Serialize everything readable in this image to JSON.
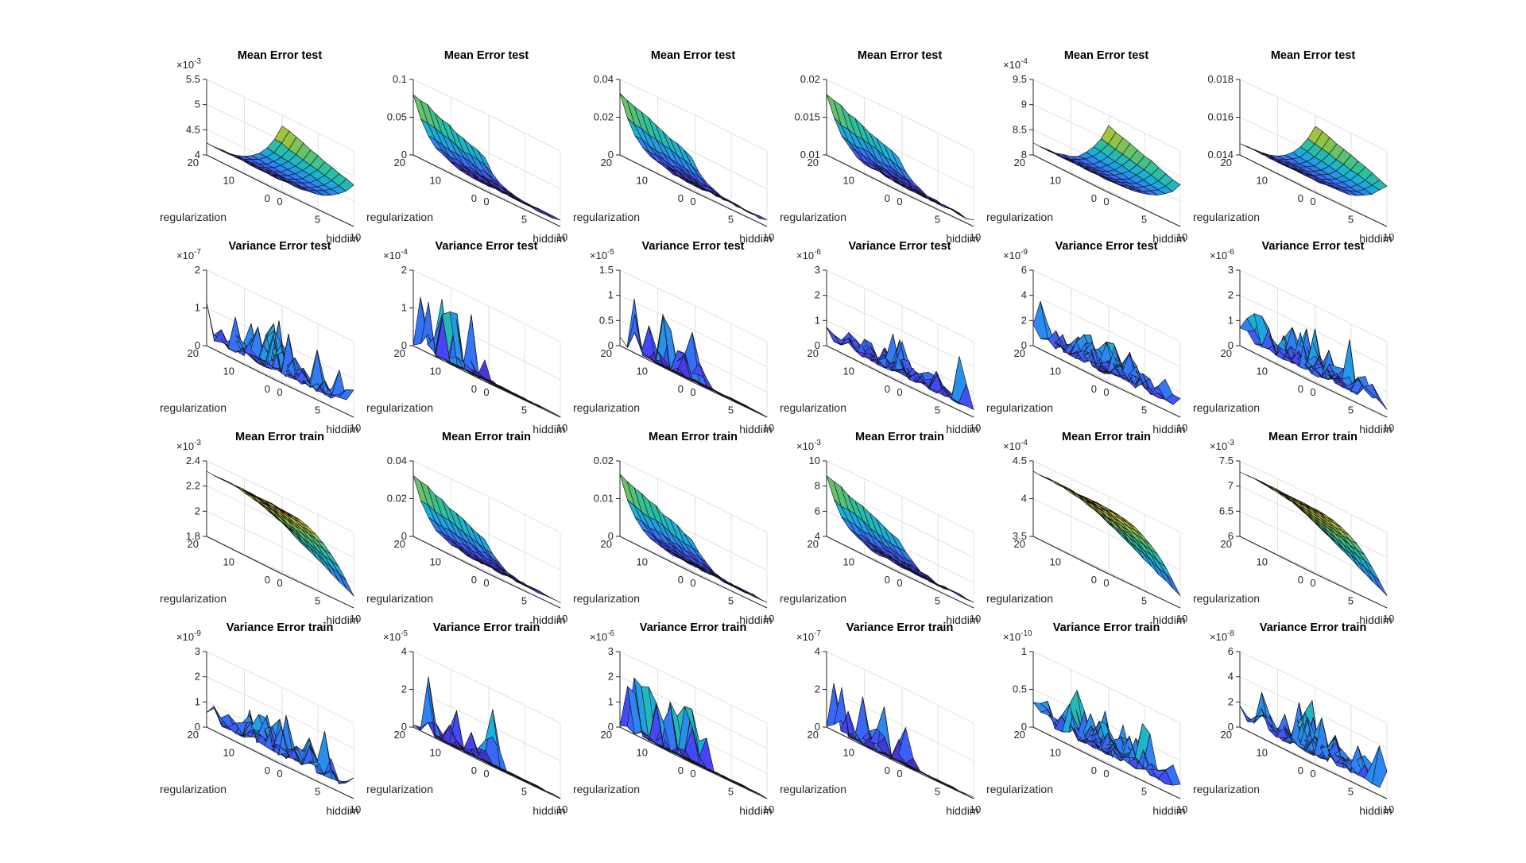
{
  "chart_data": {
    "type": "surface-grid",
    "layout": {
      "rows": 4,
      "cols": 6
    },
    "x_label": "hiddim",
    "y_label": "regularization",
    "x_ticks": [
      "0",
      "5",
      "10"
    ],
    "y_ticks": [
      "0",
      "10",
      "20"
    ],
    "xlim": [
      0,
      10
    ],
    "ylim": [
      0,
      20
    ],
    "colormap": [
      "#3e26a8",
      "#4743f8",
      "#2f80f4",
      "#18b1d9",
      "#2dc09b",
      "#93c445",
      "#f1ba2c",
      "#f9fb15"
    ],
    "charts": [
      {
        "title": "Mean Error test",
        "z_exponent": "-3",
        "z_ticks": [
          "4",
          "4.5",
          "5",
          "5.5"
        ],
        "zlim": [
          4,
          5.5
        ],
        "shape": "rise_x"
      },
      {
        "title": "Mean Error test",
        "z_exponent": "",
        "z_ticks": [
          "0",
          "0.05",
          "0.1"
        ],
        "zlim": [
          0,
          0.1
        ],
        "shape": "decay_x"
      },
      {
        "title": "Mean Error test",
        "z_exponent": "",
        "z_ticks": [
          "0",
          "0.02",
          "0.04"
        ],
        "zlim": [
          0,
          0.04
        ],
        "shape": "decay_x"
      },
      {
        "title": "Mean Error test",
        "z_exponent": "",
        "z_ticks": [
          "0.01",
          "0.015",
          "0.02"
        ],
        "zlim": [
          0.01,
          0.02
        ],
        "shape": "decay_x"
      },
      {
        "title": "Mean Error test",
        "z_exponent": "-4",
        "z_ticks": [
          "8",
          "8.5",
          "9",
          "9.5"
        ],
        "zlim": [
          8,
          9.5
        ],
        "shape": "rise_x"
      },
      {
        "title": "Mean Error test",
        "z_exponent": "",
        "z_ticks": [
          "0.014",
          "0.016",
          "0.018"
        ],
        "zlim": [
          0.014,
          0.018
        ],
        "shape": "rise_x"
      },
      {
        "title": "Variance Error test",
        "z_exponent": "-7",
        "z_ticks": [
          "0",
          "1",
          "2"
        ],
        "zlim": [
          0,
          2
        ],
        "shape": "noise"
      },
      {
        "title": "Variance Error test",
        "z_exponent": "-4",
        "z_ticks": [
          "0",
          "1",
          "2"
        ],
        "zlim": [
          0,
          2
        ],
        "shape": "spikes_low_x"
      },
      {
        "title": "Variance Error test",
        "z_exponent": "-5",
        "z_ticks": [
          "0",
          "0.5",
          "1",
          "1.5"
        ],
        "zlim": [
          0,
          1.5
        ],
        "shape": "spikes_low_x"
      },
      {
        "title": "Variance Error test",
        "z_exponent": "-6",
        "z_ticks": [
          "0",
          "1",
          "2",
          "3"
        ],
        "zlim": [
          0,
          3
        ],
        "shape": "noise_low"
      },
      {
        "title": "Variance Error test",
        "z_exponent": "-9",
        "z_ticks": [
          "0",
          "2",
          "4",
          "6"
        ],
        "zlim": [
          0,
          6
        ],
        "shape": "noise"
      },
      {
        "title": "Variance Error test",
        "z_exponent": "-6",
        "z_ticks": [
          "0",
          "1",
          "2",
          "3"
        ],
        "zlim": [
          0,
          3
        ],
        "shape": "noise"
      },
      {
        "title": "Mean Error train",
        "z_exponent": "-3",
        "z_ticks": [
          "1.8",
          "2",
          "2.2",
          "2.4"
        ],
        "zlim": [
          1.8,
          2.4
        ],
        "shape": "fall_x_high"
      },
      {
        "title": "Mean Error train",
        "z_exponent": "",
        "z_ticks": [
          "0",
          "0.02",
          "0.04"
        ],
        "zlim": [
          0,
          0.04
        ],
        "shape": "decay_x"
      },
      {
        "title": "Mean Error train",
        "z_exponent": "",
        "z_ticks": [
          "0",
          "0.01",
          "0.02"
        ],
        "zlim": [
          0,
          0.02
        ],
        "shape": "decay_x"
      },
      {
        "title": "Mean Error train",
        "z_exponent": "-3",
        "z_ticks": [
          "4",
          "6",
          "8",
          "10"
        ],
        "zlim": [
          4,
          10
        ],
        "shape": "decay_x"
      },
      {
        "title": "Mean Error train",
        "z_exponent": "-4",
        "z_ticks": [
          "3.5",
          "4",
          "4.5"
        ],
        "zlim": [
          3.5,
          4.5
        ],
        "shape": "fall_x_high"
      },
      {
        "title": "Mean Error train",
        "z_exponent": "-3",
        "z_ticks": [
          "6",
          "6.5",
          "7",
          "7.5"
        ],
        "zlim": [
          6,
          7.5
        ],
        "shape": "fall_x_high"
      },
      {
        "title": "Variance Error train",
        "z_exponent": "-9",
        "z_ticks": [
          "0",
          "1",
          "2",
          "3"
        ],
        "zlim": [
          0,
          3
        ],
        "shape": "noise"
      },
      {
        "title": "Variance Error train",
        "z_exponent": "-5",
        "z_ticks": [
          "0",
          "2",
          "4"
        ],
        "zlim": [
          0,
          4
        ],
        "shape": "spikes_low_x"
      },
      {
        "title": "Variance Error train",
        "z_exponent": "-6",
        "z_ticks": [
          "0",
          "1",
          "2",
          "3"
        ],
        "zlim": [
          0,
          3
        ],
        "shape": "spikes_low_x"
      },
      {
        "title": "Variance Error train",
        "z_exponent": "-7",
        "z_ticks": [
          "0",
          "2",
          "4"
        ],
        "zlim": [
          0,
          4
        ],
        "shape": "spikes_low_x"
      },
      {
        "title": "Variance Error train",
        "z_exponent": "-10",
        "z_ticks": [
          "0",
          "0.5",
          "1"
        ],
        "zlim": [
          0,
          1
        ],
        "shape": "noise"
      },
      {
        "title": "Variance Error train",
        "z_exponent": "-8",
        "z_ticks": [
          "0",
          "2",
          "4",
          "6"
        ],
        "zlim": [
          0,
          6
        ],
        "shape": "noise"
      }
    ]
  }
}
